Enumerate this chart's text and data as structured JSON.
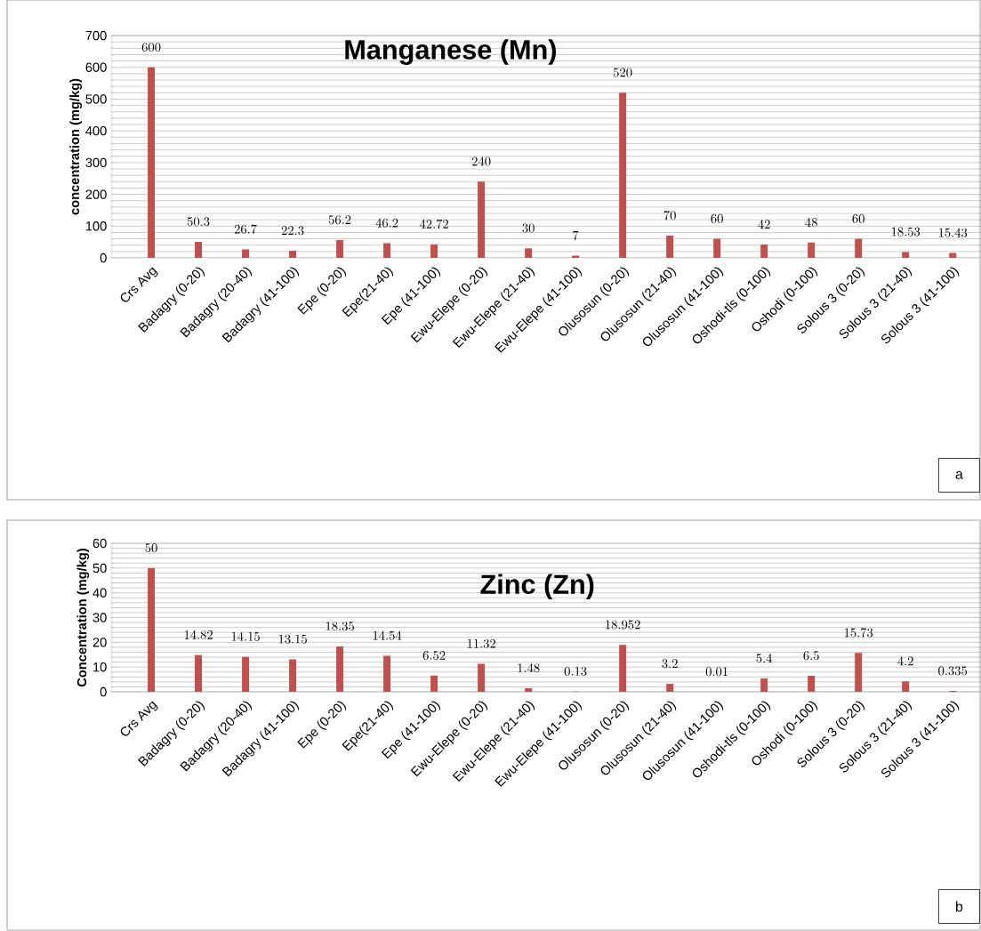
{
  "chart_data": [
    {
      "type": "bar",
      "title": "Manganese (Mn)",
      "ylabel": "concentration (mg/kg)",
      "categories": [
        "Crs Avg",
        "Badagry (0-20)",
        "Badagry (20-40)",
        "Badagry (41-100)",
        "Epe (0-20)",
        "Epe(21-40)",
        "Epe (41-100)",
        "Ewu-Elepe (0-20)",
        "Ewu-Elepe (21-40)",
        "Ewu-Elepe (41-100)",
        "Olusosun (0-20)",
        "Olusosun (21-40)",
        "Olusosun (41-100)",
        "Oshodi-tls (0-100)",
        "Oshodi (0-100)",
        "Solous 3 (0-20)",
        "Solous 3 (21-40)",
        "Solous 3 (41-100)"
      ],
      "values": [
        600,
        50.3,
        26.7,
        22.3,
        56.2,
        46.2,
        42.72,
        240,
        30,
        7,
        520,
        70,
        60,
        42,
        48,
        60,
        18.53,
        15.43
      ],
      "color": "#c0504d",
      "ylim": [
        0,
        700
      ],
      "yticks": [
        0,
        100,
        200,
        300,
        400,
        500,
        600,
        700
      ],
      "grid": "y",
      "data_labels": true,
      "annotations": [
        "a"
      ]
    },
    {
      "type": "bar",
      "title": "Zinc (Zn)",
      "ylabel": "Concentration (mg/kg)",
      "categories": [
        "Crs Avg",
        "Badagry (0-20)",
        "Badagry (20-40)",
        "Badagry (41-100)",
        "Epe (0-20)",
        "Epe(21-40)",
        "Epe (41-100)",
        "Ewu-Elepe (0-20)",
        "Ewu-Elepe (21-40)",
        "Ewu-Elepe (41-100)",
        "Olusosun (0-20)",
        "Olusosun (21-40)",
        "Olusosun (41-100)",
        "Oshodi-tls (0-100)",
        "Oshodi (0-100)",
        "Solous 3 (0-20)",
        "Solous 3 (21-40)",
        "Solous 3 (41-100)"
      ],
      "values": [
        50,
        14.82,
        14.15,
        13.15,
        18.35,
        14.54,
        6.52,
        11.32,
        1.48,
        0.13,
        18.952,
        3.2,
        0.01,
        5.4,
        6.5,
        15.73,
        4.2,
        0.335
      ],
      "color": "#c0504d",
      "ylim": [
        0,
        60
      ],
      "yticks": [
        0,
        10,
        20,
        30,
        40,
        50,
        60
      ],
      "grid": "y",
      "data_labels": true,
      "annotations": [
        "b"
      ]
    }
  ]
}
